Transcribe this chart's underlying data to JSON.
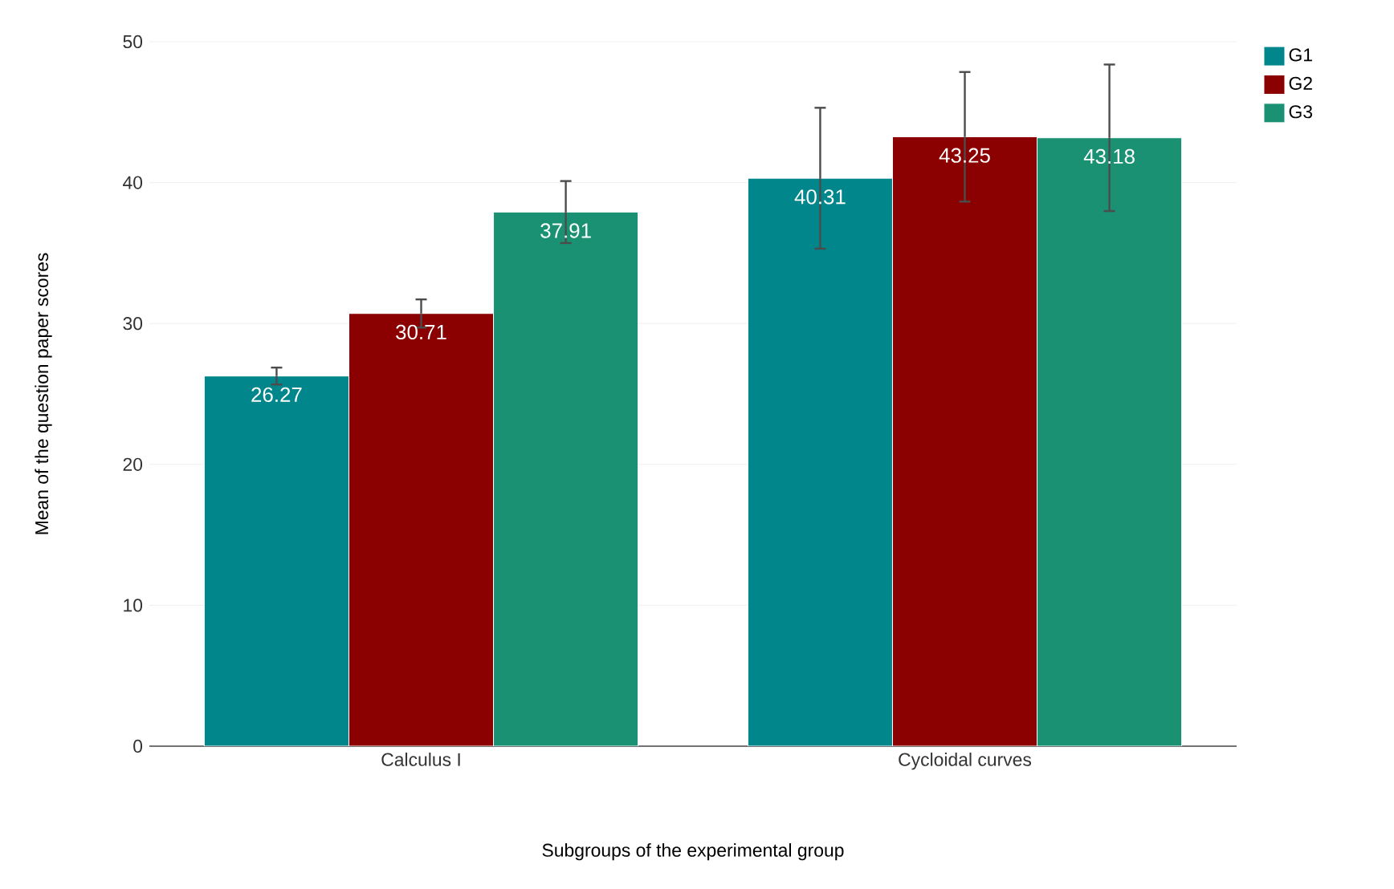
{
  "chart_data": {
    "type": "bar",
    "xlabel": "Subgroups of the experimental group",
    "ylabel": "Mean of the question paper scores",
    "categories": [
      "Calculus I",
      "Cycloidal curves"
    ],
    "series": [
      {
        "name": "G1",
        "color": "#00868b",
        "values": [
          26.27,
          40.31
        ],
        "errors": [
          0.6,
          5.0
        ]
      },
      {
        "name": "G2",
        "color": "#8b0000",
        "values": [
          30.71,
          43.25
        ],
        "errors": [
          1.0,
          4.6
        ]
      },
      {
        "name": "G3",
        "color": "#1a9172",
        "values": [
          37.91,
          43.18
        ],
        "errors": [
          2.2,
          5.2
        ]
      }
    ],
    "ylim": [
      0,
      50
    ],
    "yticks": [
      0,
      10,
      20,
      30,
      40,
      50
    ],
    "grid": "y",
    "legend": "top right",
    "data_labels": true
  }
}
